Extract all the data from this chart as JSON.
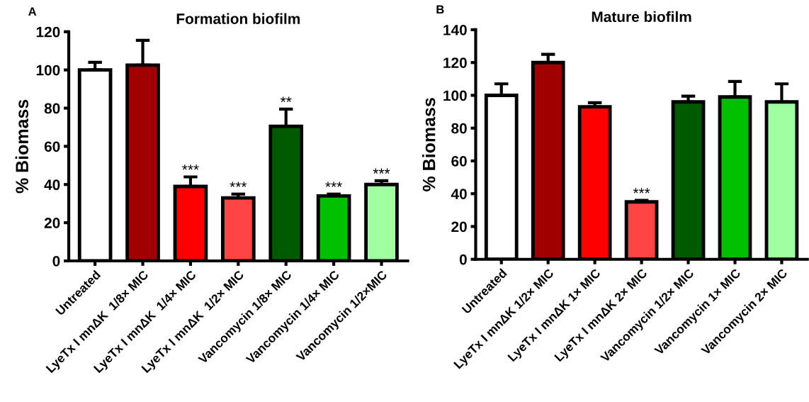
{
  "chart_data": [
    {
      "type": "bar",
      "title": "Formation biofilm",
      "ylabel": "% Biomass",
      "categories": [
        "Untreated",
        "LyeTx I mnΔK  1/8× MIC",
        "LyeTx I mnΔK  1/4× MIC",
        "LyeTx I mnΔK  1/2× MIC",
        "Vancomycin 1/8× MIC",
        "Vancomycin 1/4× MIC",
        "Vancomycin 1/2×MIC"
      ],
      "values": [
        100,
        102.5,
        39,
        33,
        70.5,
        34,
        40
      ],
      "errors": [
        [
          100,
          104
        ],
        [
          102.5,
          115.5
        ],
        [
          39,
          44
        ],
        [
          33,
          35
        ],
        [
          70.5,
          79.5
        ],
        [
          34,
          35
        ],
        [
          40,
          42
        ]
      ],
      "colors": [
        "#ffffff",
        "#a00000",
        "#ff0000",
        "#ff4444",
        "#005a00",
        "#00c000",
        "#a0ffa0"
      ],
      "ylim": [
        0,
        120
      ],
      "yticks": [
        0,
        20,
        40,
        60,
        80,
        100,
        120
      ],
      "grid": false,
      "legend": false,
      "annotations": [
        "A",
        {
          "text": "***",
          "x": "LyeTx I mnΔK  1/4× MIC",
          "y": 44
        },
        {
          "text": "***",
          "x": "LyeTx I mnΔK  1/2× MIC",
          "y": 35
        },
        {
          "text": "**",
          "x": "Vancomycin 1/8× MIC",
          "y": 79.5
        },
        {
          "text": "***",
          "x": "Vancomycin 1/4× MIC",
          "y": 35
        },
        {
          "text": "***",
          "x": "Vancomycin 1/2×MIC",
          "y": 42
        }
      ]
    },
    {
      "type": "bar",
      "title": "Mature biofilm",
      "ylabel": "% Biomass",
      "categories": [
        "Untreated",
        "LyeTx I mnΔK 1/2× MIC",
        "LyeTx I mnΔK 1× MIC",
        "LyeTx I mnΔK 2× MIC",
        "Vancomycin 1/2× MIC",
        "Vancomycin 1× MIC",
        "Vancomycin 2× MIC"
      ],
      "values": [
        100,
        120,
        93,
        35,
        96,
        99,
        96
      ],
      "errors": [
        [
          100,
          107
        ],
        [
          120,
          125
        ],
        [
          93,
          95.5
        ],
        [
          35,
          36
        ],
        [
          96,
          99.5
        ],
        [
          99,
          108.5
        ],
        [
          96,
          107
        ]
      ],
      "colors": [
        "#ffffff",
        "#a00000",
        "#ff0000",
        "#ff4444",
        "#005a00",
        "#00c000",
        "#a0ffa0"
      ],
      "ylim": [
        0,
        140
      ],
      "yticks": [
        0,
        20,
        40,
        60,
        80,
        100,
        120,
        140
      ],
      "grid": false,
      "legend": false,
      "annotations": [
        "B",
        {
          "text": "***",
          "x": "LyeTx I mnΔK 2× MIC",
          "y": 36
        }
      ]
    }
  ]
}
